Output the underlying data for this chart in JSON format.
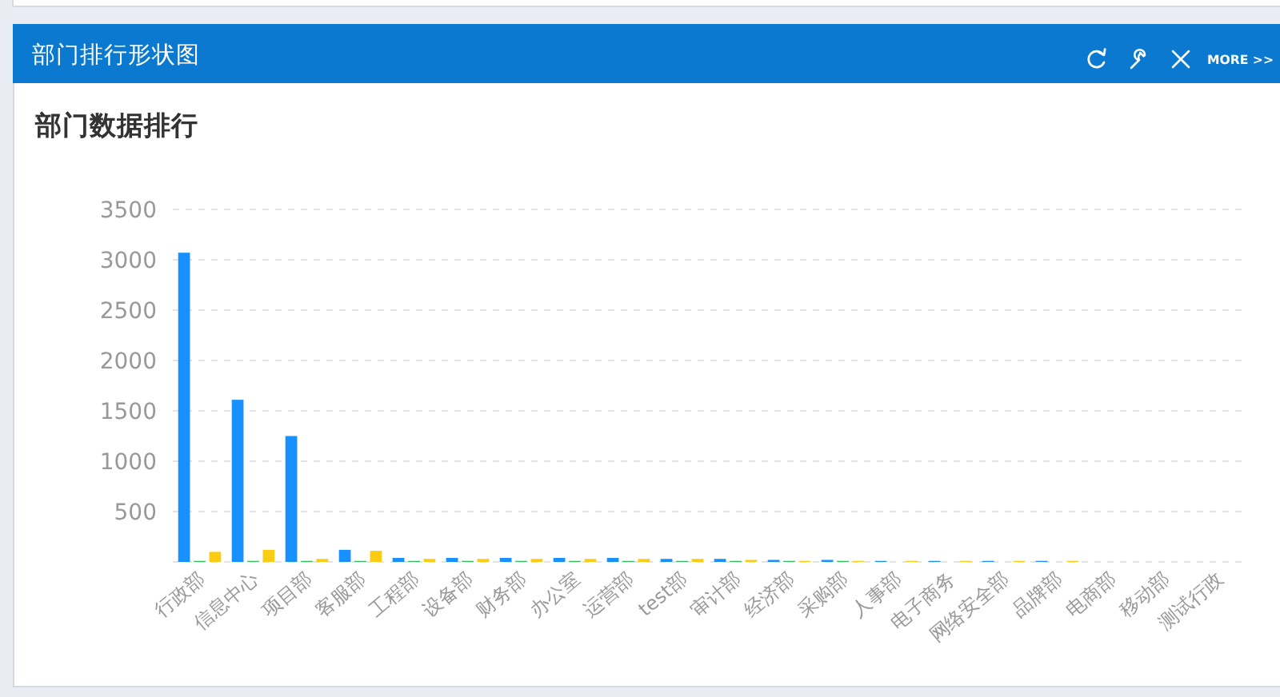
{
  "chart_data": {
    "type": "bar",
    "title": "部门排行形状图",
    "subtitle": "部门数据排行",
    "annotations": [
      "MORE >>"
    ],
    "categories": [
      "行政部",
      "信息中心",
      "项目部",
      "客服部",
      "工程部",
      "设备部",
      "财务部",
      "办公室",
      "运营部",
      "test部",
      "审计部",
      "经济部",
      "采购部",
      "人事部",
      "电子商务",
      "网络安全部",
      "品牌部",
      "电商部",
      "移动部",
      "测试行政"
    ],
    "series": [
      {
        "color": "#1890ff",
        "values": [
          3070,
          1610,
          1250,
          120,
          40,
          40,
          40,
          40,
          40,
          30,
          30,
          20,
          20,
          10,
          10,
          10,
          10,
          0,
          0,
          0
        ]
      },
      {
        "color": "#2fc25b",
        "values": [
          10,
          10,
          10,
          10,
          10,
          10,
          10,
          10,
          10,
          10,
          10,
          10,
          10,
          0,
          0,
          0,
          0,
          0,
          0,
          0
        ]
      },
      {
        "color": "#facc14",
        "values": [
          100,
          120,
          30,
          110,
          30,
          30,
          30,
          30,
          30,
          30,
          20,
          10,
          10,
          10,
          10,
          10,
          10,
          0,
          0,
          0
        ]
      }
    ],
    "ylim": [
      0,
      3500
    ],
    "yticks": [
      {
        "value": 0,
        "label": null
      },
      500,
      1000,
      1500,
      2000,
      2500,
      3000,
      3500
    ],
    "grid": "y"
  }
}
